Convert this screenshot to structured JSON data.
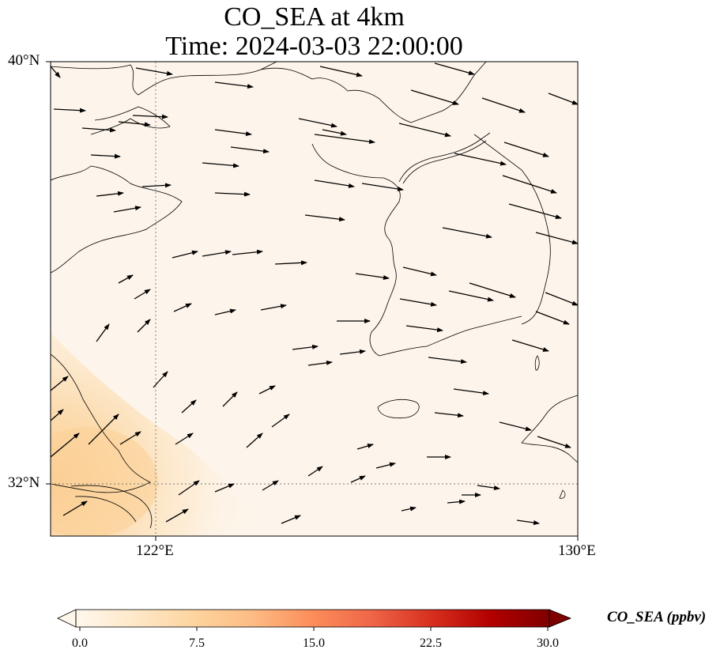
{
  "figure": {
    "title_line1": "CO_SEA at 4km",
    "title_line2": "Time: 2024-03-03 22:00:00"
  },
  "map": {
    "lat_ticks": [
      "40°N",
      "32°N"
    ],
    "lon_ticks": [
      "122°E",
      "130°E"
    ],
    "extent": {
      "lon_min": 120,
      "lon_max": 130,
      "lat_min": 31,
      "lat_max": 40
    },
    "gridline_lons": [
      122
    ],
    "gridline_lats": [
      32
    ],
    "field_color": "#fdf5eb",
    "high_color": "#fbcf96"
  },
  "colorbar": {
    "label": "CO_SEA (ppbv)",
    "ticks": [
      "0.0",
      "7.5",
      "15.0",
      "22.5",
      "30.0"
    ],
    "range": [
      0,
      30
    ],
    "colormap": "OrRd",
    "colors": [
      "#fff7ec",
      "#fee8c8",
      "#fdd49e",
      "#fdbb84",
      "#fc8d59",
      "#ef6548",
      "#d7301f",
      "#b30000",
      "#7f0000"
    ]
  }
}
